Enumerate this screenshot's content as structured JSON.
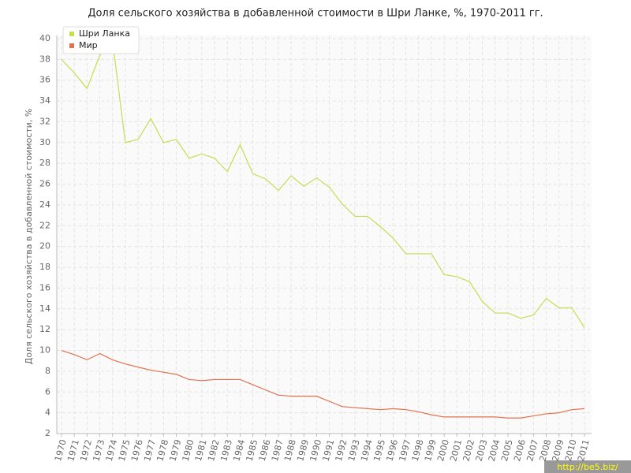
{
  "chart_data": {
    "type": "line",
    "title": "Доля сельского хозяйства в добавленной стоимости в Шри Ланке, %, 1970-2011 гг.",
    "y_label": "Доля сельского хозяйства в добавленной стоимости, %",
    "categories": [
      "1970",
      "1971",
      "1972",
      "1973",
      "1974",
      "1975",
      "1976",
      "1977",
      "1978",
      "1979",
      "1980",
      "1981",
      "1982",
      "1983",
      "1984",
      "1985",
      "1986",
      "1987",
      "1988",
      "1989",
      "1990",
      "1991",
      "1992",
      "1993",
      "1994",
      "1995",
      "1996",
      "1997",
      "1998",
      "1999",
      "2000",
      "2001",
      "2002",
      "2003",
      "2004",
      "2005",
      "2006",
      "2007",
      "2008",
      "2009",
      "2010",
      "2011"
    ],
    "series": [
      {
        "name": "Шри Ланка",
        "color": "#c8dc4e",
        "values": [
          38,
          36.7,
          35.2,
          38.4,
          39.8,
          30,
          30.3,
          32.3,
          30,
          30.3,
          28.5,
          28.9,
          28.5,
          27.2,
          29.8,
          27,
          26.5,
          25.4,
          26.8,
          25.8,
          26.6,
          25.7,
          24.1,
          22.9,
          22.9,
          21.9,
          20.8,
          19.3,
          19.3,
          19.3,
          17.3,
          17.1,
          16.6,
          14.7,
          13.6,
          13.6,
          13.1,
          13.4,
          15,
          14.1,
          14.1,
          12.2
        ]
      },
      {
        "name": "Мир",
        "color": "#e2714d",
        "values": [
          10,
          9.6,
          9.1,
          9.7,
          9.1,
          8.7,
          8.4,
          8.1,
          7.9,
          7.7,
          7.2,
          7.1,
          7.2,
          7.2,
          7.2,
          6.7,
          6.2,
          5.7,
          5.6,
          5.6,
          5.6,
          5.1,
          4.6,
          4.5,
          4.4,
          4.3,
          4.4,
          4.3,
          4.1,
          3.8,
          3.6,
          3.6,
          3.6,
          3.6,
          3.6,
          3.5,
          3.5,
          3.7,
          3.9,
          4,
          4.3,
          4.4
        ]
      }
    ],
    "ylim": [
      2,
      40
    ],
    "yticks": [
      2,
      4,
      6,
      8,
      10,
      12,
      14,
      16,
      18,
      20,
      22,
      24,
      26,
      28,
      30,
      32,
      34,
      36,
      38,
      40
    ],
    "grid": true,
    "legend": "top-left"
  },
  "watermark": "http://be5.biz/"
}
